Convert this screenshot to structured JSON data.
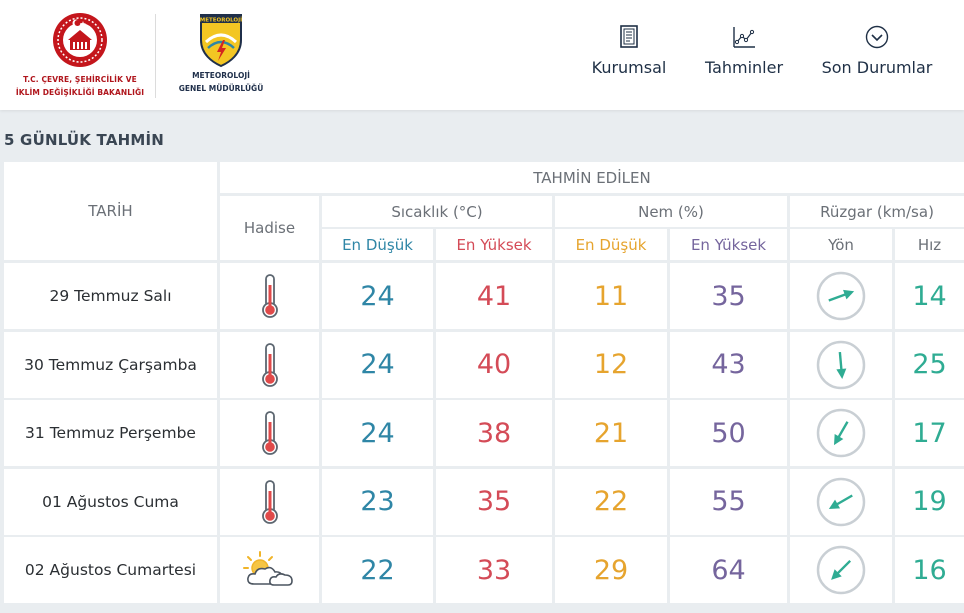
{
  "ministry": {
    "line1": "T.C. ÇEVRE, ŞEHİRCİLİK VE",
    "line2": "İKLİM DEĞİŞİKLİĞİ BAKANLIĞI"
  },
  "mgm": {
    "badge": "METEOROLOJİ",
    "line1": "METEOROLOJİ",
    "line2": "GENEL MÜDÜRLÜĞÜ"
  },
  "nav": {
    "kurumsal": "Kurumsal",
    "tahminler": "Tahminler",
    "son_durumlar": "Son Durumlar"
  },
  "section_title": "5 GÜNLÜK TAHMİN",
  "table": {
    "tarih": "TARİH",
    "tahmin_edilen": "TAHMİN EDİLEN",
    "hadise": "Hadise",
    "sicaklik": "Sıcaklık (°C)",
    "nem": "Nem (%)",
    "ruzgar": "Rüzgar (km/sa)",
    "en_dusuk": "En Düşük",
    "en_yuksek": "En Yüksek",
    "yon": "Yön",
    "hiz": "Hız"
  },
  "colors": {
    "low_temp": "#2f86a6",
    "high_temp": "#d44b57",
    "low_humidity": "#e6a42e",
    "high_humidity": "#75659d",
    "wind_speed": "#2fac93",
    "accent_red": "#b0151c"
  },
  "days": [
    {
      "date": "29 Temmuz Salı",
      "icon": "thermometer-hot-icon",
      "t_min": "24",
      "t_max": "41",
      "h_min": "11",
      "h_max": "35",
      "wind_dir_deg": 250,
      "wind_speed": "14"
    },
    {
      "date": "30 Temmuz Çarşamba",
      "icon": "thermometer-hot-icon",
      "t_min": "24",
      "t_max": "40",
      "h_min": "12",
      "h_max": "43",
      "wind_dir_deg": 355,
      "wind_speed": "25"
    },
    {
      "date": "31 Temmuz Perşembe",
      "icon": "thermometer-hot-icon",
      "t_min": "24",
      "t_max": "38",
      "h_min": "21",
      "h_max": "50",
      "wind_dir_deg": 30,
      "wind_speed": "17"
    },
    {
      "date": "01 Ağustos Cuma",
      "icon": "thermometer-hot-icon",
      "t_min": "23",
      "t_max": "35",
      "h_min": "22",
      "h_max": "55",
      "wind_dir_deg": 60,
      "wind_speed": "19"
    },
    {
      "date": "02 Ağustos Cumartesi",
      "icon": "partly-cloudy-icon",
      "t_min": "22",
      "t_max": "33",
      "h_min": "29",
      "h_max": "64",
      "wind_dir_deg": 45,
      "wind_speed": "16"
    }
  ]
}
